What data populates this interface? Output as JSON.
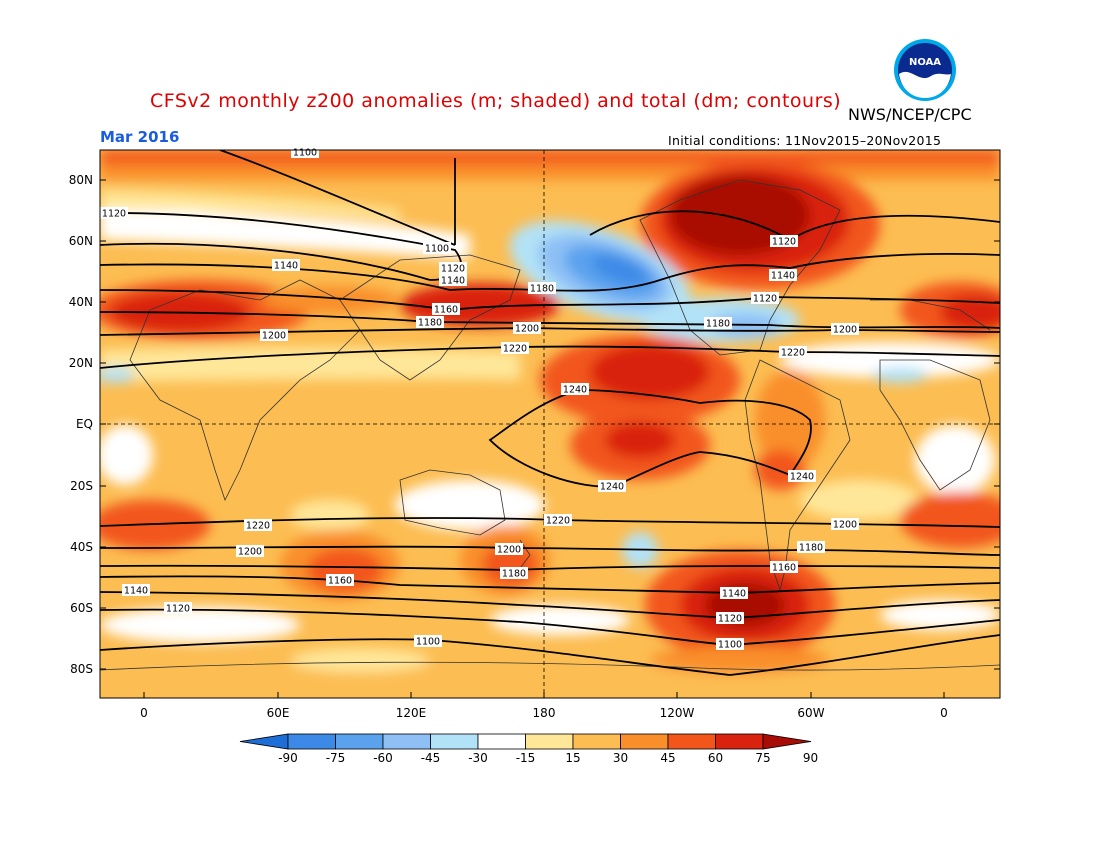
{
  "header": {
    "title": "CFSv2 monthly z200 anomalies (m; shaded) and total (dm; contours)",
    "agency": "NWS/NCEP/CPC",
    "month": "Mar 2016",
    "initial_conditions": "Initial conditions: 11Nov2015–20Nov2015",
    "logo_text": "NOAA"
  },
  "axes": {
    "lat_labels": [
      "80N",
      "60N",
      "40N",
      "20N",
      "EQ",
      "20S",
      "40S",
      "60S",
      "80S"
    ],
    "lon_labels": [
      "0",
      "60E",
      "120E",
      "180",
      "120W",
      "60W",
      "0"
    ]
  },
  "colorbar": {
    "ticks": [
      "-90",
      "-75",
      "-60",
      "-45",
      "-30",
      "-15",
      "15",
      "30",
      "45",
      "60",
      "75",
      "90"
    ],
    "colors": [
      "#1e6ed8",
      "#3c8ae6",
      "#5aa2ee",
      "#8ec0f5",
      "#b2e2f7",
      "#ffffff",
      "#ffe79a",
      "#fcbd52",
      "#f98f2a",
      "#f2561a",
      "#d9230f",
      "#a80c06"
    ]
  },
  "contours": {
    "labels": [
      "1100",
      "1120",
      "1100",
      "1120",
      "1120",
      "1140",
      "1140",
      "1140",
      "1120",
      "1160",
      "1180",
      "1180",
      "1180",
      "1200",
      "1200",
      "1200",
      "1220",
      "1220",
      "1240",
      "1240",
      "1240",
      "1220",
      "1220",
      "1200",
      "1200",
      "1200",
      "1180",
      "1180",
      "1160",
      "1160",
      "1140",
      "1140",
      "1120",
      "1120",
      "1100",
      "1100"
    ]
  }
}
